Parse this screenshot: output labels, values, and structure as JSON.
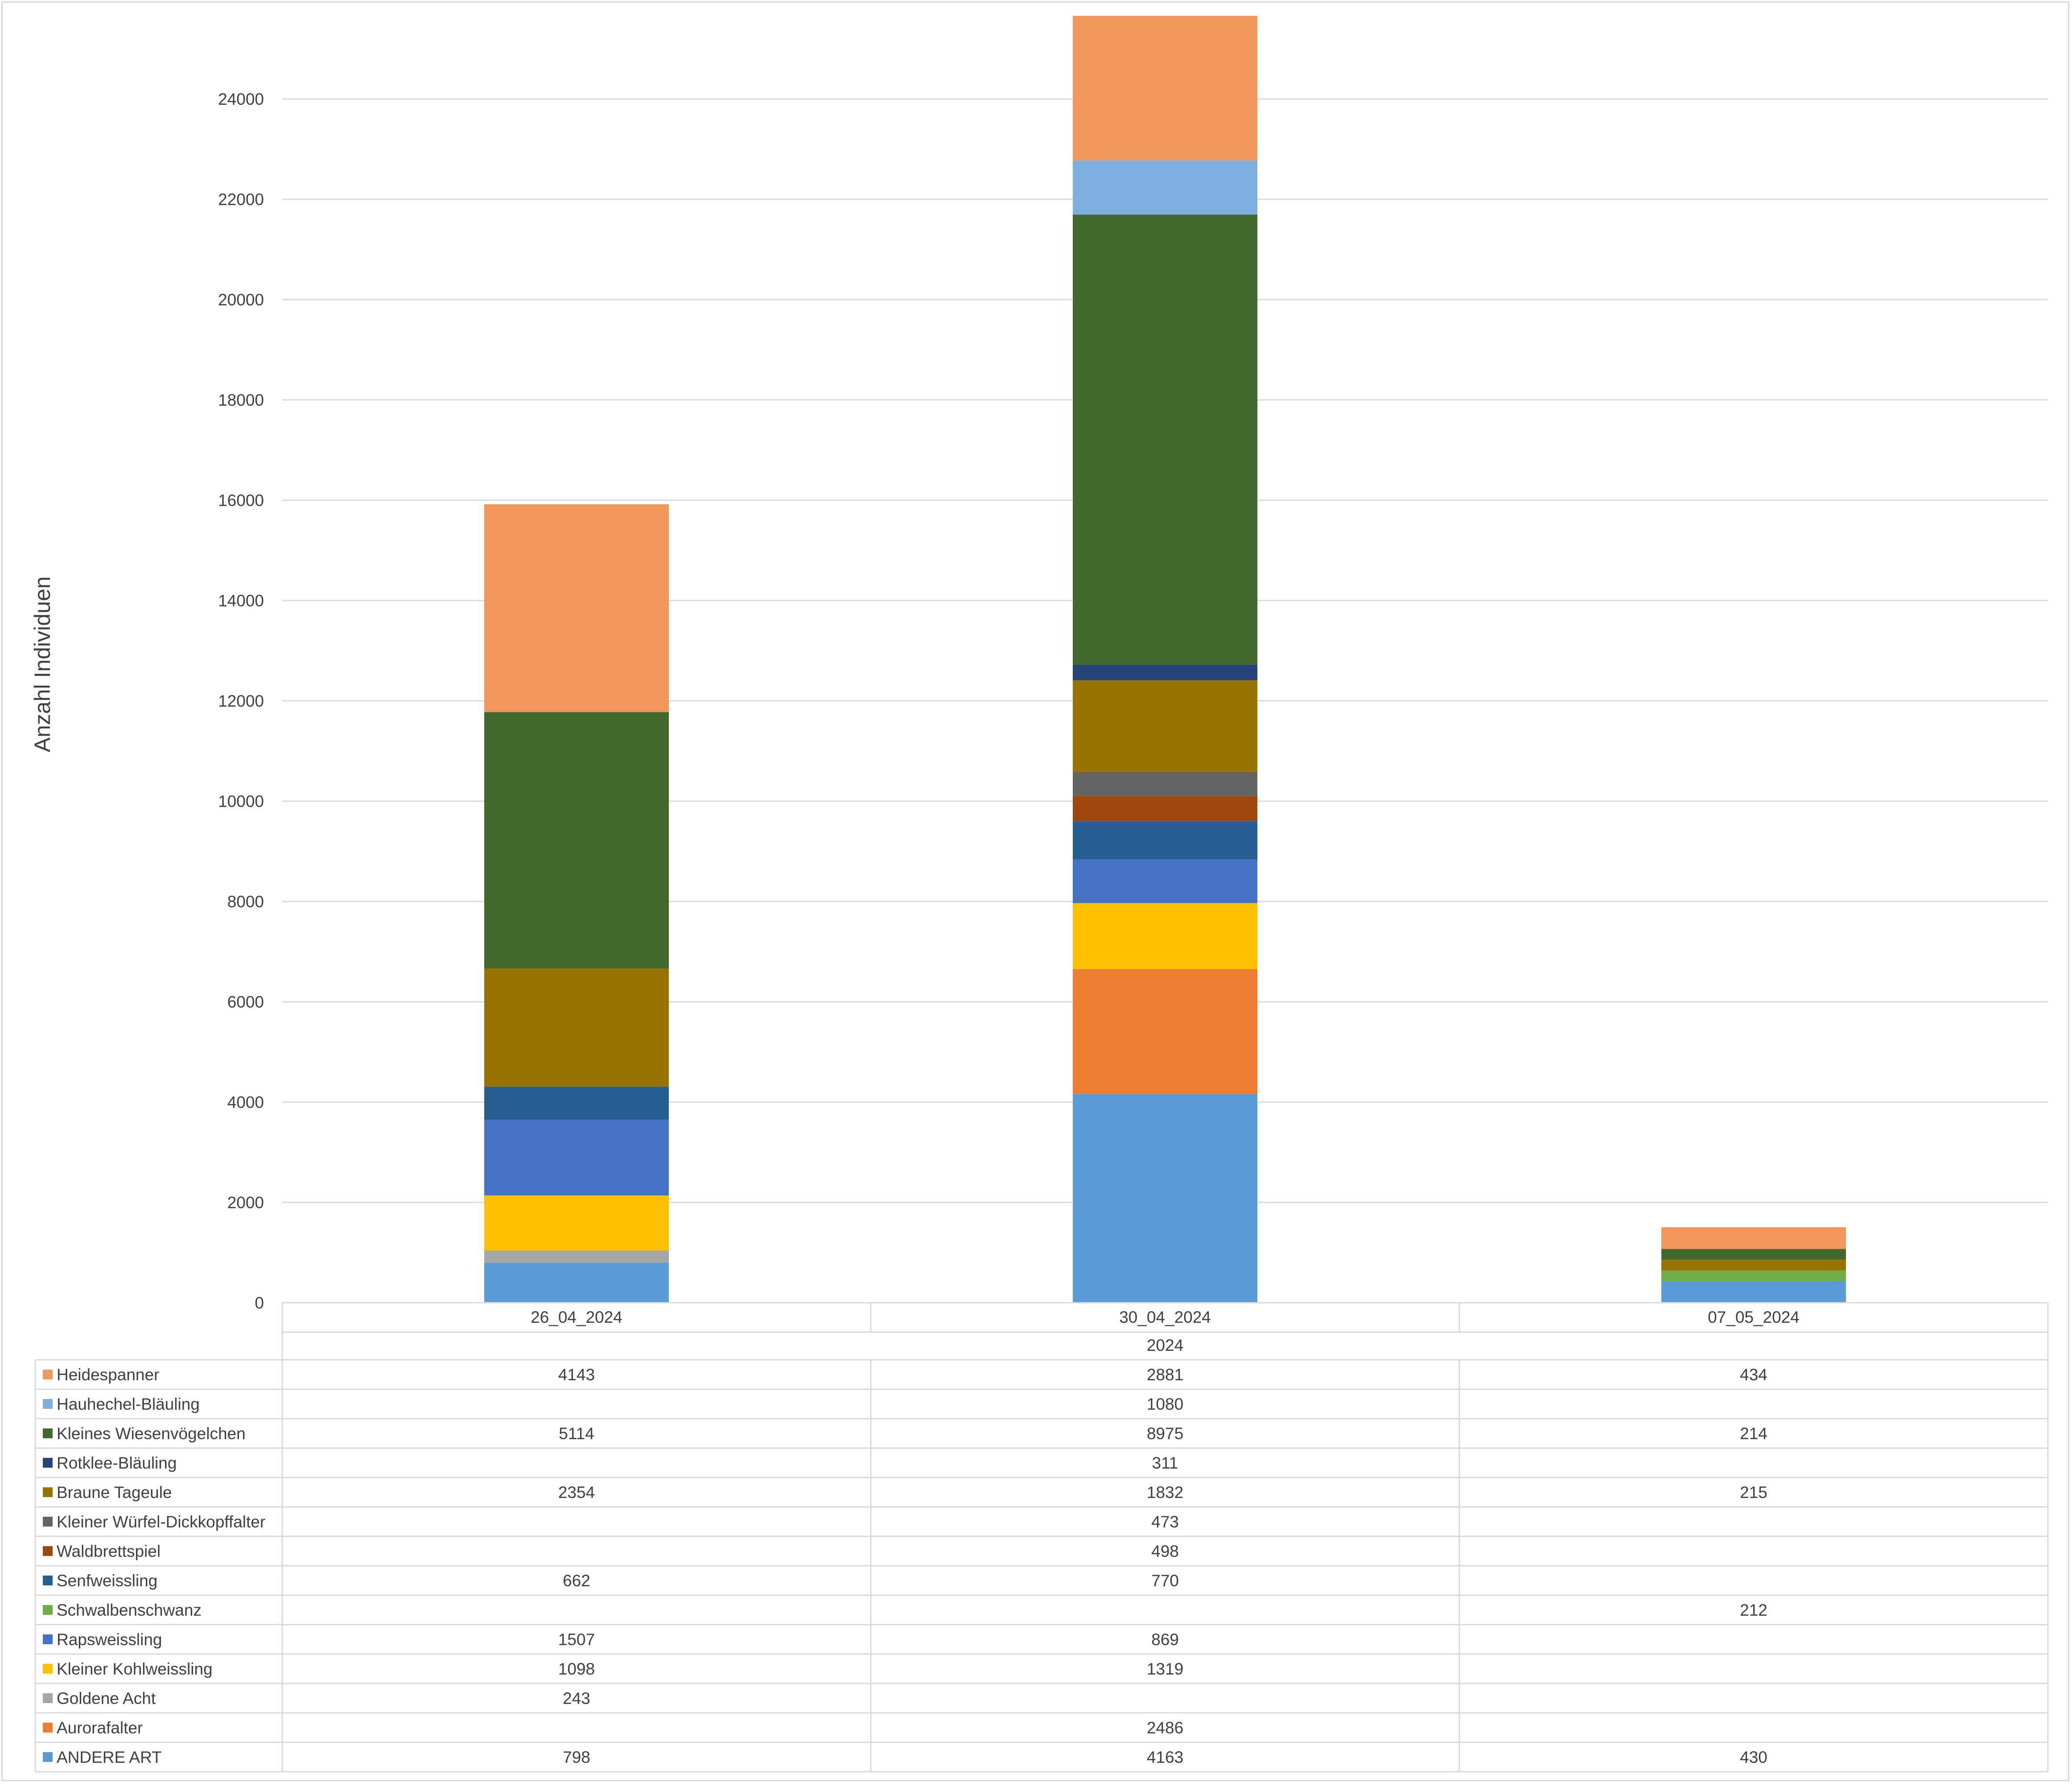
{
  "chart_data": {
    "type": "bar",
    "stacked": true,
    "ylabel": "Anzahl Individuen",
    "xlabel": "",
    "ylim": [
      0,
      25600
    ],
    "yticks": [
      0,
      2000,
      4000,
      6000,
      8000,
      10000,
      12000,
      14000,
      16000,
      18000,
      20000,
      22000,
      24000
    ],
    "categories": [
      "26_04_2024",
      "30_04_2024",
      "07_05_2024"
    ],
    "category_group": "2024",
    "grid": true,
    "legend": "data-table",
    "series": [
      {
        "name": "ANDERE ART",
        "color": "#5b9bd5",
        "values": [
          798,
          4163,
          430
        ]
      },
      {
        "name": "Aurorafalter",
        "color": "#ed7d31",
        "values": [
          null,
          2486,
          null
        ]
      },
      {
        "name": "Goldene Acht",
        "color": "#a5a5a5",
        "values": [
          243,
          null,
          null
        ]
      },
      {
        "name": "Kleiner Kohlweissling",
        "color": "#ffc000",
        "values": [
          1098,
          1319,
          null
        ]
      },
      {
        "name": "Rapsweissling",
        "color": "#4472c4",
        "values": [
          1507,
          869,
          null
        ]
      },
      {
        "name": "Schwalbenschwanz",
        "color": "#70ad47",
        "values": [
          null,
          null,
          212
        ]
      },
      {
        "name": "Senfweissling",
        "color": "#255e91",
        "values": [
          662,
          770,
          null
        ]
      },
      {
        "name": "Waldbrettspiel",
        "color": "#9e480e",
        "values": [
          null,
          498,
          null
        ]
      },
      {
        "name": "Kleiner Würfel-Dickkopffalter",
        "color": "#636363",
        "values": [
          null,
          473,
          null
        ]
      },
      {
        "name": "Braune Tageule",
        "color": "#997300",
        "values": [
          2354,
          1832,
          215
        ]
      },
      {
        "name": "Rotklee-Bläuling",
        "color": "#264478",
        "values": [
          null,
          311,
          null
        ]
      },
      {
        "name": "Kleines Wiesenvögelchen",
        "color": "#43682b",
        "values": [
          5114,
          8975,
          214
        ]
      },
      {
        "name": "Hauhechel-Bläuling",
        "color": "#7cafdd",
        "values": [
          null,
          1080,
          null
        ]
      },
      {
        "name": "Heidespanner",
        "color": "#f1975a",
        "values": [
          4143,
          2881,
          434
        ]
      }
    ]
  }
}
